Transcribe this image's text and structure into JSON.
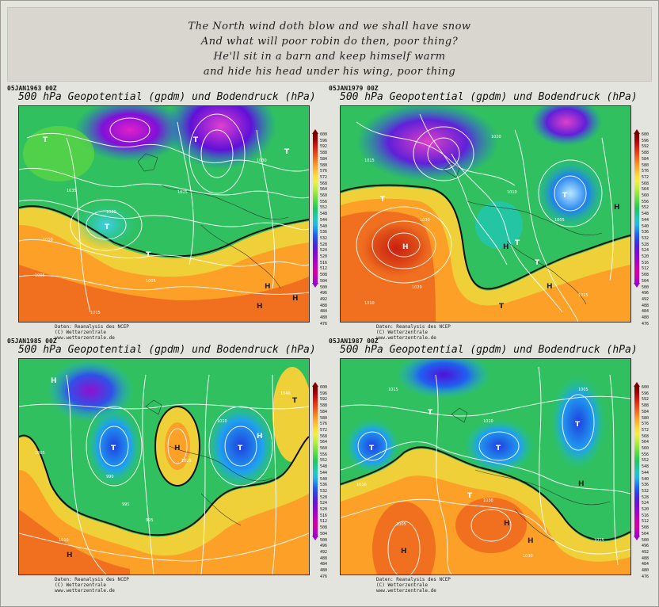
{
  "poem": {
    "lines": [
      "The North wind doth blow and we shall have snow",
      "And what will poor robin do then, poor thing?",
      "He'll sit in a barn and keep himself warm",
      "and hide his head under his wing, poor thing"
    ]
  },
  "scale_ticks": [
    "600",
    "596",
    "592",
    "588",
    "584",
    "580",
    "576",
    "572",
    "568",
    "564",
    "560",
    "556",
    "552",
    "548",
    "544",
    "540",
    "536",
    "532",
    "528",
    "524",
    "520",
    "516",
    "512",
    "508",
    "504",
    "500",
    "496",
    "492",
    "488",
    "484",
    "480",
    "476"
  ],
  "scale_colors": [
    "#7a0000",
    "#a00000",
    "#c81010",
    "#e03010",
    "#f05018",
    "#f87820",
    "#fca028",
    "#fcc030",
    "#fce038",
    "#f0f040",
    "#c8f040",
    "#a0e840",
    "#70e040",
    "#40d848",
    "#20c860",
    "#20c890",
    "#20c8c0",
    "#20b8e8",
    "#2090f0",
    "#2060f0",
    "#3040e8",
    "#5020e0",
    "#7010d8",
    "#9008d0",
    "#b000c8",
    "#c800b8",
    "#d800a0",
    "#c000c0",
    "#a000c8"
  ],
  "panels": [
    {
      "date": "05JAN1963 00Z",
      "title": "500 hPa Geopotential (gpdm) und Bodendruck (hPa)",
      "credit": [
        "Daten: Reanalysis des NCEP",
        "(C) Wetterzentrale",
        "www.wetterzentrale.de"
      ],
      "pressure_labels": [
        "1005",
        "1010",
        "1015",
        "1020",
        "1025",
        "1030",
        "1035",
        "1040",
        "1000",
        "995"
      ],
      "highs": [
        "H",
        "H",
        "H"
      ],
      "lows": [
        "T",
        "T",
        "T",
        "T",
        "T"
      ]
    },
    {
      "date": "05JAN1979 00Z",
      "title": "500 hPa Geopotential (gpdm) und Bodendruck (hPa)",
      "credit": [
        "Daten: Reanalysis des NCEP",
        "(C) Wetterzentrale",
        "www.wetterzentrale.de"
      ],
      "pressure_labels": [
        "1010",
        "1015",
        "1020",
        "1025",
        "1030",
        "1035",
        "1040",
        "1000",
        "1005"
      ],
      "highs": [
        "H",
        "H",
        "H",
        "H"
      ],
      "lows": [
        "T",
        "T",
        "T",
        "T"
      ]
    },
    {
      "date": "05JAN1985 00Z",
      "title": "500 hPa Geopotential (gpdm) und Bodendruck (hPa)",
      "credit": [
        "Daten: Reanalysis des NCEP",
        "(C) Wetterzentrale",
        "www.wetterzentrale.de"
      ],
      "pressure_labels": [
        "1005",
        "1010",
        "1015",
        "1020",
        "1025",
        "1030",
        "1035",
        "1040",
        "990",
        "995",
        "1000"
      ],
      "highs": [
        "H",
        "H",
        "H"
      ],
      "lows": [
        "T",
        "T",
        "T",
        "T"
      ]
    },
    {
      "date": "05JAN1987 00Z",
      "title": "500 hPa Geopotential (gpdm) und Bodendruck (hPa)",
      "credit": [
        "Daten: Reanalysis des NCEP",
        "(C) Wetterzentrale",
        "www.wetterzentrale.de"
      ],
      "pressure_labels": [
        "1005",
        "1010",
        "1015",
        "1020",
        "1025",
        "1030",
        "1035",
        "1040",
        "1000"
      ],
      "highs": [
        "H",
        "H",
        "H",
        "H"
      ],
      "lows": [
        "T",
        "T",
        "T",
        "T",
        "T"
      ]
    }
  ]
}
